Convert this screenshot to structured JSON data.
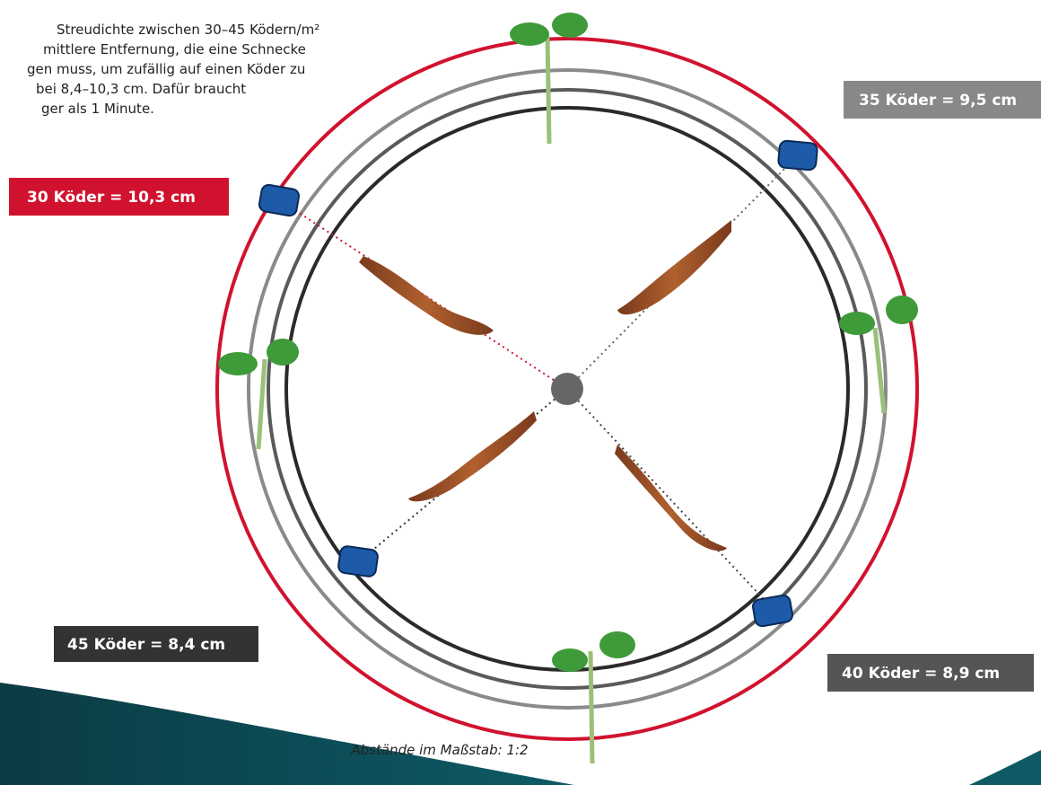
{
  "intro": {
    "lines": [
      "Streudichte zwischen 30–45 Ködern/m²",
      "mittlere Entfernung, die eine Schnecke",
      "gen muss, um zufällig auf einen Köder zu",
      "bei 8,4–10,3 cm. Dafür braucht",
      "ger als 1 Minute."
    ]
  },
  "labels": [
    {
      "text": "30 Köder = 10,3 cm"
    },
    {
      "text": "35 Köder = 9,5 cm"
    },
    {
      "text": "40 Köder = 8,9 cm"
    },
    {
      "text": "45 Köder = 8,4 cm"
    }
  ],
  "footnote": "Abstände im Maßstab: 1:2"
}
